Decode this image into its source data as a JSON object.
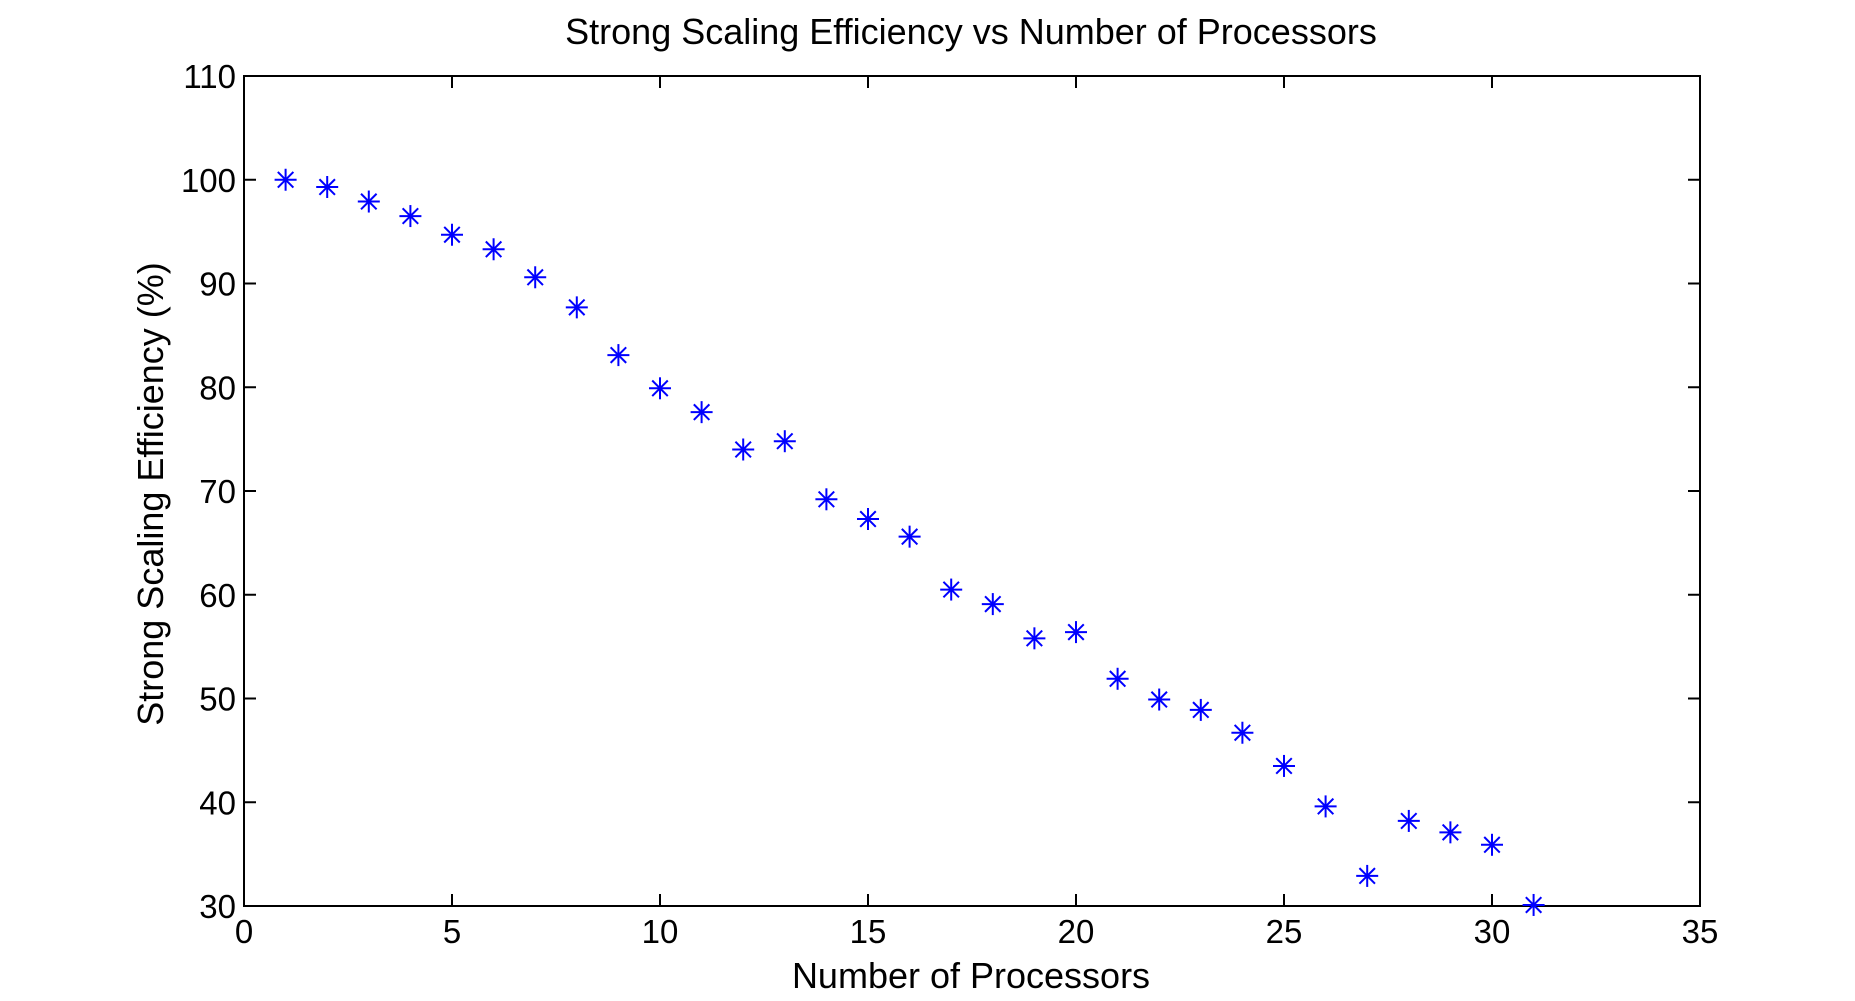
{
  "chart_data": {
    "type": "scatter",
    "title": "Strong Scaling Efficiency vs Number of Processors",
    "xlabel": "Number of Processors",
    "ylabel": "Strong Scaling Efficiency (%)",
    "xlim": [
      0,
      35
    ],
    "ylim": [
      30,
      110
    ],
    "xticks": [
      0,
      5,
      10,
      15,
      20,
      25,
      30,
      35
    ],
    "yticks": [
      30,
      40,
      50,
      60,
      70,
      80,
      90,
      100,
      110
    ],
    "grid": false,
    "legend": "none",
    "marker": "asterisk",
    "marker_color": "#0000ff",
    "series": [
      {
        "x": [
          1,
          2,
          3,
          4,
          5,
          6,
          7,
          8,
          9,
          10,
          11,
          12,
          13,
          14,
          15,
          16,
          17,
          18,
          19,
          20,
          21,
          22,
          23,
          24,
          25,
          26,
          27,
          28,
          29,
          30,
          31
        ],
        "y": [
          100,
          99.3,
          97.9,
          96.5,
          94.7,
          93.3,
          90.6,
          87.7,
          83.1,
          79.9,
          77.6,
          74.0,
          74.8,
          69.2,
          67.3,
          65.6,
          60.5,
          59.1,
          55.8,
          56.4,
          51.9,
          49.9,
          48.9,
          46.7,
          43.5,
          39.6,
          32.9,
          38.2,
          37.1,
          35.9,
          30.1
        ]
      }
    ]
  }
}
